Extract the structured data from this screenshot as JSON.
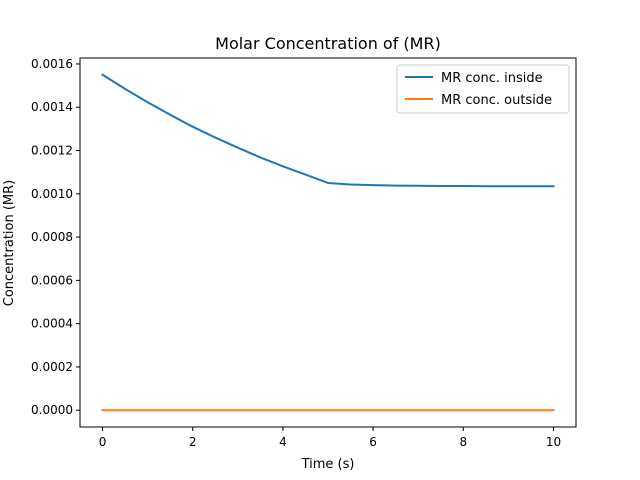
{
  "chart_data": {
    "type": "line",
    "title": "Molar Concentration of (MR)",
    "xlabel": "Time (s)",
    "ylabel": "Concentration (MR)",
    "xlim": [
      -0.5,
      10.5
    ],
    "ylim": [
      -7.75e-05,
      0.0016275
    ],
    "xticks": [
      0,
      2,
      4,
      6,
      8,
      10
    ],
    "xtick_labels": [
      "0",
      "2",
      "4",
      "6",
      "8",
      "10"
    ],
    "yticks": [
      0,
      0.0002,
      0.0004,
      0.0006,
      0.0008,
      0.001,
      0.0012,
      0.0014,
      0.0016
    ],
    "ytick_labels": [
      "0.0000",
      "0.0002",
      "0.0004",
      "0.0006",
      "0.0008",
      "0.0010",
      "0.0012",
      "0.0014",
      "0.0016"
    ],
    "grid": false,
    "legend_position": "top-right",
    "series": [
      {
        "name": "MR conc. inside",
        "color": "#1f77b4",
        "x": [
          0,
          0.5,
          1,
          1.5,
          2,
          2.5,
          3,
          3.5,
          4,
          4.5,
          5,
          5.5,
          6,
          6.5,
          7,
          7.5,
          8,
          8.5,
          9,
          9.5,
          10
        ],
        "y": [
          0.00155,
          0.001485,
          0.001423,
          0.001365,
          0.00131,
          0.00126,
          0.001213,
          0.001168,
          0.001127,
          0.001089,
          0.00105,
          0.001043,
          0.00104,
          0.001038,
          0.001037,
          0.001036,
          0.001036,
          0.001035,
          0.001035,
          0.001035,
          0.001035
        ]
      },
      {
        "name": "MR conc. outside",
        "color": "#ff7f0e",
        "x": [
          0,
          10
        ],
        "y": [
          0.0,
          0.0
        ]
      }
    ]
  }
}
